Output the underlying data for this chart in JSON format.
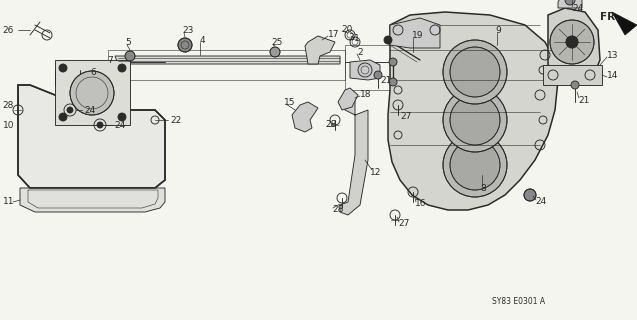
{
  "bg_color": "#f5f5f0",
  "line_color": "#2a2a2a",
  "diagram_code": "SY83 E0301 A",
  "fr_label": "FR.",
  "figsize": [
    6.37,
    3.2
  ],
  "dpi": 100,
  "font_size": 6.5,
  "lw_main": 1.1,
  "lw_thin": 0.65,
  "lw_xtra": 0.4
}
